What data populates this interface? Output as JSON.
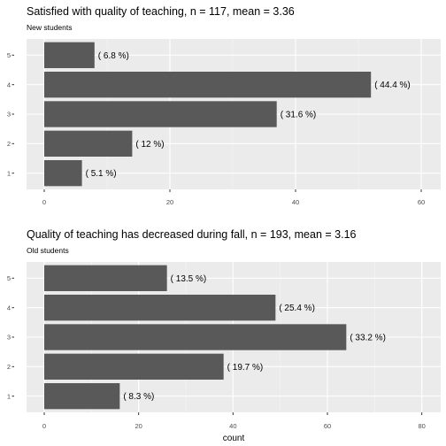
{
  "chart_data": [
    {
      "type": "bar",
      "orientation": "horizontal",
      "title": "Satisfied with quality of teaching, n = 117, mean =  3.36",
      "subtitle": "New students",
      "categories": [
        "1",
        "2",
        "3",
        "4",
        "5"
      ],
      "values": [
        6,
        14,
        37,
        52,
        8
      ],
      "data_labels": [
        "( 5.1 %)",
        "( 12 %)",
        "( 31.6 %)",
        "( 44.4 %)",
        "( 6.8 %)"
      ],
      "xlim": [
        0,
        60
      ],
      "xticks": [
        "0",
        "20",
        "40",
        "60"
      ],
      "xlabel": "",
      "bar_color": "#595959",
      "panel_color": "#ebebeb",
      "grid": true
    },
    {
      "type": "bar",
      "orientation": "horizontal",
      "title": "Quality of teaching has decreased during fall, n = 193, mean =  3.16",
      "subtitle": "Old students",
      "categories": [
        "1",
        "2",
        "3",
        "4",
        "5"
      ],
      "values": [
        16,
        38,
        64,
        49,
        26
      ],
      "data_labels": [
        "( 8.3 %)",
        "( 19.7 %)",
        "( 33.2 %)",
        "( 25.4 %)",
        "( 13.5 %)"
      ],
      "xlim": [
        0,
        80
      ],
      "xticks": [
        "0",
        "20",
        "40",
        "60",
        "80"
      ],
      "xlabel": "count",
      "bar_color": "#595959",
      "panel_color": "#ebebeb",
      "grid": true
    }
  ]
}
